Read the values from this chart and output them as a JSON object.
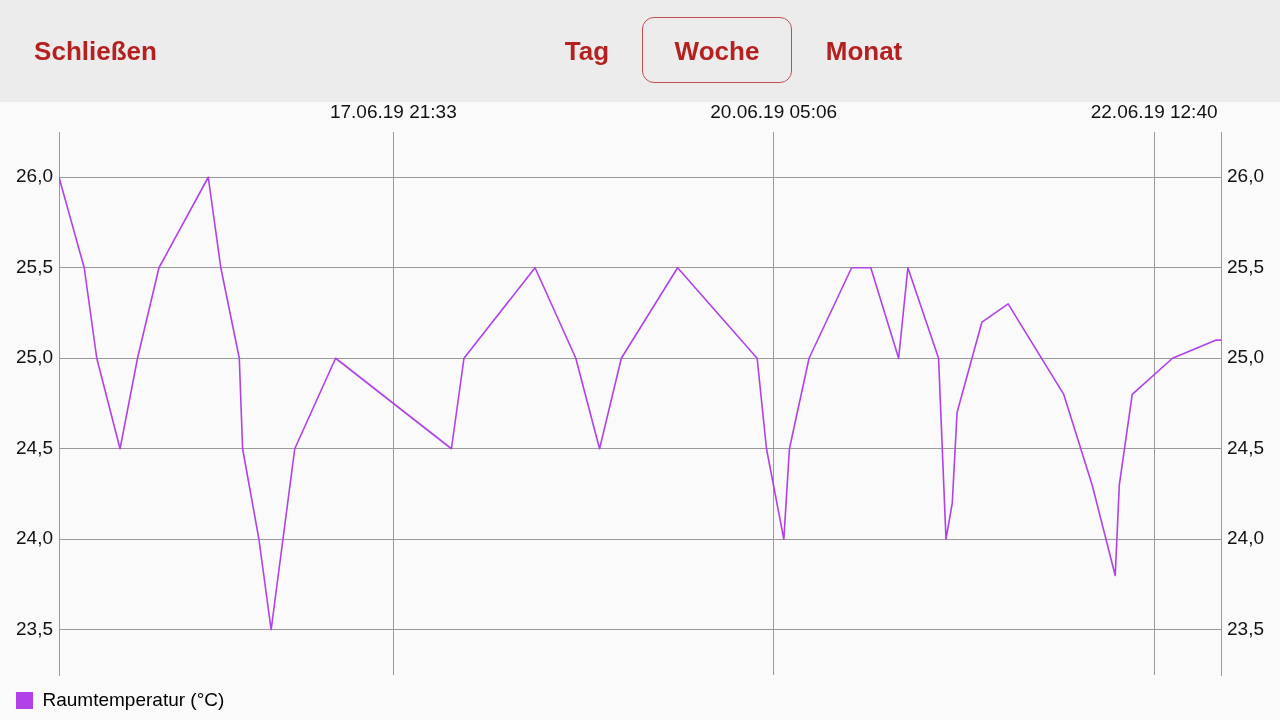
{
  "chart_data": {
    "type": "line",
    "annotations": [
      "Schließen",
      "Tag",
      "Woche",
      "Monat"
    ],
    "series": [
      {
        "name": "Raumtemperatur (°C)",
        "color": "#b042e8",
        "x": [
          "--06-15T20:43",
          "--06-16T00:24",
          "--06-16T02:14",
          "--06-16T05:38",
          "--06-16T08:11",
          "--06-16T11:19",
          "--06-16T18:31",
          "--06-16T20:21",
          "--06-16T23:03",
          "--06-16T23:32",
          "--06-17T01:55",
          "--06-17T03:42",
          "--06-17T07:09",
          "--06-17T13:07",
          "--06-18T06:02",
          "--06-18T07:52",
          "--06-18T18:15",
          "--06-19T00:12",
          "--06-19T03:40",
          "--06-19T06:51",
          "--06-19T15:04",
          "--06-20T02:41",
          "--06-20T04:03",
          "--06-20T06:35",
          "--06-20T07:24",
          "--06-20T10:16",
          "--06-20T16:29",
          "--06-20T19:17",
          "--06-20T23:21",
          "--06-21T00:42",
          "--06-21T05:11",
          "--06-21T06:16",
          "--06-21T07:11",
          "--06-21T07:53",
          "--06-21T11:31",
          "--06-21T15:21",
          "--06-21T23:28",
          "--06-22T03:37",
          "--06-22T06:59",
          "--06-22T07:35",
          "--06-22T09:28",
          "--06-22T15:21",
          "--06-22T21:38",
          "--06-22T22:26"
        ],
        "values": [
          26.0,
          25.5,
          25.0,
          24.5,
          25.0,
          25.5,
          26.0,
          25.5,
          25.0,
          24.5,
          24.0,
          23.5,
          24.5,
          25.0,
          24.5,
          25.0,
          25.5,
          25.0,
          24.5,
          25.0,
          25.5,
          25.0,
          24.5,
          24.0,
          24.5,
          25.0,
          25.5,
          25.5,
          25.0,
          25.5,
          25.0,
          24.0,
          24.2,
          24.7,
          25.2,
          25.3,
          24.8,
          24.3,
          23.8,
          24.3,
          24.8,
          25.0,
          25.1,
          25.1
        ]
      }
    ],
    "xlim": [
      "--06-15T20:43",
      "--06-22T22:26"
    ],
    "xticks": [
      {
        "value": "--06-17T21:33",
        "label": "17.06.19 21:33"
      },
      {
        "value": "--06-20T05:06",
        "label": "20.06.19 05:06"
      },
      {
        "value": "--06-22T12:40",
        "label": "22.06.19 12:40"
      }
    ],
    "ylim": [
      23.25,
      26.25
    ],
    "yticks": [
      {
        "value": 23.5,
        "label": "23,5"
      },
      {
        "value": 24,
        "label": "24,0"
      },
      {
        "value": 24.5,
        "label": "24,5"
      },
      {
        "value": 25,
        "label": "25,0"
      },
      {
        "value": 25.5,
        "label": "25,5"
      },
      {
        "value": 26,
        "label": "26,0"
      }
    ],
    "y2lim": [
      23.25,
      26.25
    ],
    "y2ticks": [
      {
        "value": 23.5,
        "label": "23,5"
      },
      {
        "value": 24,
        "label": "24,0"
      },
      {
        "value": 24.5,
        "label": "24,5"
      },
      {
        "value": 25,
        "label": "25,0"
      },
      {
        "value": 25.5,
        "label": "25,5"
      },
      {
        "value": 26,
        "label": "26,0"
      }
    ],
    "grid": true,
    "legend": "bottom left",
    "marker": "none",
    "line_style": "solid"
  }
}
